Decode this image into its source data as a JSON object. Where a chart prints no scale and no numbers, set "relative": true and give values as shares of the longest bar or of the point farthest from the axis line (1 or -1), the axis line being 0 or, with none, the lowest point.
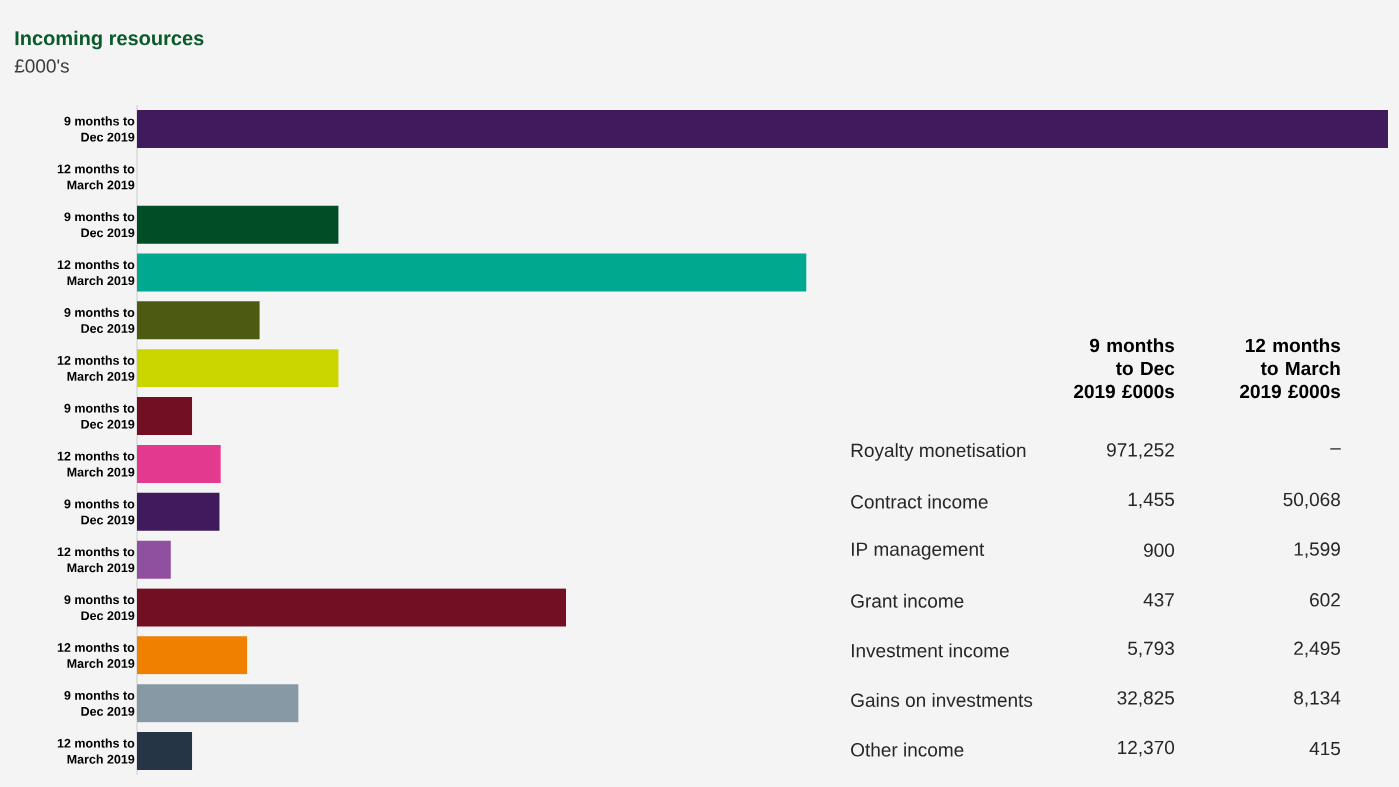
{
  "chart_data": {
    "type": "bar",
    "orientation": "horizontal",
    "relative": true,
    "title": "Incoming resources",
    "subtitle": "£000's",
    "categories": [
      "9 months to Dec 2019",
      "12 months to March 2019",
      "9 months to Dec 2019",
      "12 months to March 2019",
      "9 months to Dec 2019",
      "12 months to March 2019",
      "9 months to Dec 2019",
      "12 months to March 2019",
      "9 months to Dec 2019",
      "12 months to March 2019",
      "9 months to Dec 2019",
      "12 months to March 2019",
      "9 months to Dec 2019",
      "12 months to March 2019"
    ],
    "values": [
      1.0,
      null,
      0.161,
      0.535,
      0.098,
      0.161,
      0.044,
      0.067,
      0.066,
      0.027,
      0.343,
      0.088,
      0.129,
      0.044
    ],
    "colors": [
      "#3f1a5c",
      "#3f1a5c",
      "#004d26",
      "#00a88f",
      "#4d5a12",
      "#cbd600",
      "#730f22",
      "#e3398f",
      "#3f1a5c",
      "#9050a0",
      "#730f22",
      "#f08000",
      "#8899a6",
      "#253545"
    ],
    "annotations": [
      "9 months to Dec 2019 £000s",
      "12 months to March 2019 £000s",
      "Royalty monetisation",
      "971,252",
      "–",
      "Contract income",
      "1,455",
      "50,068",
      "IP management",
      "900",
      "1,599",
      "Grant income",
      "437",
      "602",
      "Investment income",
      "5,793",
      "2,495",
      "Gains on investments",
      "32,825",
      "8,134",
      "Other income",
      "12,370",
      "415"
    ]
  }
}
